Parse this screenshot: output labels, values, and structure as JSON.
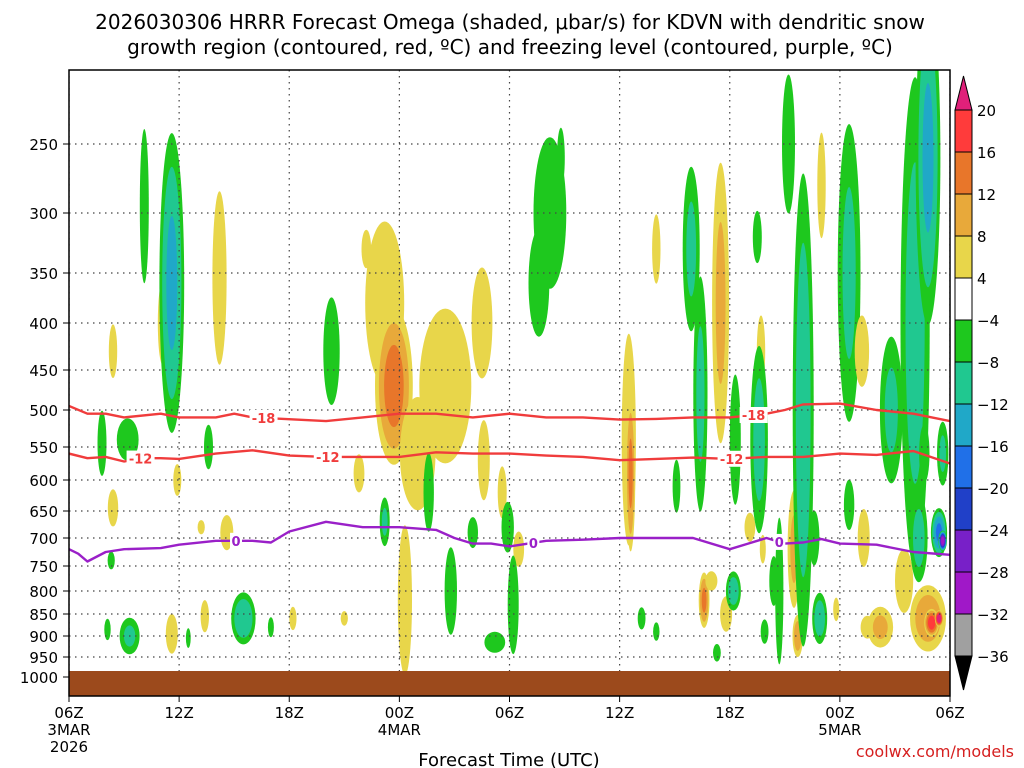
{
  "chart_data": {
    "type": "heatmap",
    "title_line1": "2026030306 HRRR Forecast Omega (shaded, μbar/s) for KDVN with dendritic snow",
    "title_line2": "growth region (contoured, red, ºC) and freezing level (contoured, purple, ºC)",
    "xlabel": "Forecast Time (UTC)",
    "ylabel": "",
    "credit": "coolwx.com/models",
    "x_range_hours": [
      0,
      48
    ],
    "y_range_hpa": [
      1050,
      200
    ],
    "x_ticks": [
      {
        "h": 0,
        "label": "06Z",
        "sub1": "3MAR",
        "sub2": "2026"
      },
      {
        "h": 6,
        "label": "12Z",
        "sub1": "",
        "sub2": ""
      },
      {
        "h": 12,
        "label": "18Z",
        "sub1": "",
        "sub2": ""
      },
      {
        "h": 18,
        "label": "00Z",
        "sub1": "4MAR",
        "sub2": ""
      },
      {
        "h": 24,
        "label": "06Z",
        "sub1": "",
        "sub2": ""
      },
      {
        "h": 30,
        "label": "12Z",
        "sub1": "",
        "sub2": ""
      },
      {
        "h": 36,
        "label": "18Z",
        "sub1": "",
        "sub2": ""
      },
      {
        "h": 42,
        "label": "00Z",
        "sub1": "5MAR",
        "sub2": ""
      },
      {
        "h": 48,
        "label": "06Z",
        "sub1": "",
        "sub2": ""
      }
    ],
    "y_ticks": [
      {
        "p": 250,
        "label": "250"
      },
      {
        "p": 300,
        "label": "300"
      },
      {
        "p": 350,
        "label": "350"
      },
      {
        "p": 400,
        "label": "400"
      },
      {
        "p": 450,
        "label": "450"
      },
      {
        "p": 500,
        "label": "500"
      },
      {
        "p": 550,
        "label": "550"
      },
      {
        "p": 600,
        "label": "600"
      },
      {
        "p": 650,
        "label": "650"
      },
      {
        "p": 700,
        "label": "700"
      },
      {
        "p": 750,
        "label": "750"
      },
      {
        "p": 800,
        "label": "800"
      },
      {
        "p": 850,
        "label": "850"
      },
      {
        "p": 900,
        "label": "900"
      },
      {
        "p": 950,
        "label": "950"
      },
      {
        "p": 1000,
        "label": "1000"
      }
    ],
    "colorbar": {
      "levels": [
        "20",
        "16",
        "12",
        "8",
        "4",
        "−4",
        "−8",
        "−12",
        "−16",
        "−20",
        "−24",
        "−28",
        "−32",
        "−36"
      ],
      "colors": [
        "#ff3b3b",
        "#e8762a",
        "#e8a93a",
        "#e8d64a",
        "#ffffff",
        "#1ec81e",
        "#20c890",
        "#20a8c8",
        "#2070e8",
        "#2040c8",
        "#7820c8",
        "#a018c8",
        "#a0a0a0"
      ],
      "top_arrow_color": "#e0207a",
      "bottom_arrow_color": "#000000"
    },
    "omega_blobs": [
      {
        "h": 1.8,
        "p": 545,
        "dh": 0.35,
        "dp": 65,
        "v": -6
      },
      {
        "h": 2.1,
        "p": 885,
        "dh": 0.25,
        "dp": 35,
        "v": -6
      },
      {
        "h": 2.3,
        "p": 740,
        "dh": 0.3,
        "dp": 25,
        "v": -5
      },
      {
        "h": 2.4,
        "p": 430,
        "dh": 0.35,
        "dp": 45,
        "v": 5
      },
      {
        "h": 2.4,
        "p": 645,
        "dh": 0.4,
        "dp": 45,
        "v": 6
      },
      {
        "h": 3.2,
        "p": 540,
        "dh": 0.8,
        "dp": 40,
        "v": -7
      },
      {
        "h": 3.3,
        "p": 900,
        "dh": 0.7,
        "dp": 55,
        "v": -8
      },
      {
        "h": 4.1,
        "p": 295,
        "dh": 0.35,
        "dp": 85,
        "v": -6
      },
      {
        "h": 5.1,
        "p": 400,
        "dh": 0.4,
        "dp": 65,
        "v": 5
      },
      {
        "h": 5.6,
        "p": 360,
        "dh": 0.8,
        "dp": 160,
        "v": -12
      },
      {
        "h": 5.6,
        "p": 895,
        "dh": 0.5,
        "dp": 70,
        "v": 5
      },
      {
        "h": 5.9,
        "p": 600,
        "dh": 0.35,
        "dp": 40,
        "v": 4.5
      },
      {
        "h": 6.5,
        "p": 905,
        "dh": 0.2,
        "dp": 35,
        "v": -5
      },
      {
        "h": 7.2,
        "p": 680,
        "dh": 0.3,
        "dp": 20,
        "v": 5
      },
      {
        "h": 7.4,
        "p": 855,
        "dh": 0.35,
        "dp": 55,
        "v": 5
      },
      {
        "h": 7.6,
        "p": 550,
        "dh": 0.35,
        "dp": 45,
        "v": -6
      },
      {
        "h": 8.2,
        "p": 355,
        "dh": 0.55,
        "dp": 110,
        "v": 6
      },
      {
        "h": 8.6,
        "p": 690,
        "dh": 0.5,
        "dp": 45,
        "v": 6
      },
      {
        "h": 9.5,
        "p": 860,
        "dh": 0.8,
        "dp": 70,
        "v": -11
      },
      {
        "h": 11.0,
        "p": 880,
        "dh": 0.25,
        "dp": 35,
        "v": -5
      },
      {
        "h": 12.2,
        "p": 860,
        "dh": 0.3,
        "dp": 40,
        "v": 5
      },
      {
        "h": 14.3,
        "p": 430,
        "dh": 0.6,
        "dp": 80,
        "v": -7
      },
      {
        "h": 15.0,
        "p": 860,
        "dh": 0.3,
        "dp": 25,
        "v": 5
      },
      {
        "h": 15.8,
        "p": 590,
        "dh": 0.45,
        "dp": 45,
        "v": 5
      },
      {
        "h": 16.2,
        "p": 330,
        "dh": 0.4,
        "dp": 25,
        "v": 5
      },
      {
        "h": 17.2,
        "p": 380,
        "dh": 1.5,
        "dp": 110,
        "v": 6
      },
      {
        "h": 17.7,
        "p": 470,
        "dh": 1.2,
        "dp": 110,
        "v": 13
      },
      {
        "h": 17.2,
        "p": 670,
        "dh": 0.35,
        "dp": 55,
        "v": -8
      },
      {
        "h": 18.3,
        "p": 820,
        "dh": 0.55,
        "dp": 220,
        "v": 6
      },
      {
        "h": 19.0,
        "p": 560,
        "dh": 1.3,
        "dp": 110,
        "v": 7
      },
      {
        "h": 19.6,
        "p": 620,
        "dh": 0.4,
        "dp": 90,
        "v": -6
      },
      {
        "h": 20.5,
        "p": 470,
        "dh": 2.0,
        "dp": 130,
        "v": 6
      },
      {
        "h": 20.8,
        "p": 800,
        "dh": 0.45,
        "dp": 120,
        "v": -7
      },
      {
        "h": 22.0,
        "p": 690,
        "dh": 0.4,
        "dp": 40,
        "v": -6
      },
      {
        "h": 22.5,
        "p": 400,
        "dh": 0.8,
        "dp": 80,
        "v": 6
      },
      {
        "h": 22.6,
        "p": 570,
        "dh": 0.5,
        "dp": 90,
        "v": 5
      },
      {
        "h": 23.6,
        "p": 620,
        "dh": 0.35,
        "dp": 60,
        "v": 6
      },
      {
        "h": 23.9,
        "p": 680,
        "dh": 0.45,
        "dp": 60,
        "v": -7
      },
      {
        "h": 24.5,
        "p": 720,
        "dh": 0.45,
        "dp": 50,
        "v": 5
      },
      {
        "h": 24.2,
        "p": 830,
        "dh": 0.4,
        "dp": 140,
        "v": -7
      },
      {
        "h": 23.2,
        "p": 915,
        "dh": 0.8,
        "dp": 35,
        "v": -6
      },
      {
        "h": 25.6,
        "p": 360,
        "dh": 0.8,
        "dp": 70,
        "v": -6
      },
      {
        "h": 26.2,
        "p": 300,
        "dh": 1.2,
        "dp": 80,
        "v": -7
      },
      {
        "h": 26.8,
        "p": 260,
        "dh": 0.3,
        "dp": 30,
        "v": -6
      },
      {
        "h": 30.5,
        "p": 540,
        "dh": 0.55,
        "dp": 200,
        "v": 6
      },
      {
        "h": 30.6,
        "p": 590,
        "dh": 0.3,
        "dp": 140,
        "v": 12
      },
      {
        "h": 31.2,
        "p": 860,
        "dh": 0.3,
        "dp": 35,
        "v": -6
      },
      {
        "h": 32.0,
        "p": 330,
        "dh": 0.35,
        "dp": 45,
        "v": 5
      },
      {
        "h": 32.0,
        "p": 890,
        "dh": 0.25,
        "dp": 30,
        "v": -6
      },
      {
        "h": 33.1,
        "p": 610,
        "dh": 0.3,
        "dp": 60,
        "v": -6
      },
      {
        "h": 33.9,
        "p": 330,
        "dh": 0.6,
        "dp": 90,
        "v": -8
      },
      {
        "h": 34.4,
        "p": 480,
        "dh": 0.5,
        "dp": 180,
        "v": -8
      },
      {
        "h": 34.6,
        "p": 820,
        "dh": 0.35,
        "dp": 70,
        "v": 12
      },
      {
        "h": 35.0,
        "p": 780,
        "dh": 0.5,
        "dp": 30,
        "v": 5
      },
      {
        "h": 35.3,
        "p": 940,
        "dh": 0.3,
        "dp": 30,
        "v": -6
      },
      {
        "h": 35.5,
        "p": 380,
        "dh": 0.6,
        "dp": 170,
        "v": 8
      },
      {
        "h": 35.8,
        "p": 850,
        "dh": 0.5,
        "dp": 60,
        "v": 5
      },
      {
        "h": 36.2,
        "p": 800,
        "dh": 0.5,
        "dp": 50,
        "v": -10
      },
      {
        "h": 36.3,
        "p": 540,
        "dh": 0.4,
        "dp": 120,
        "v": -7
      },
      {
        "h": 37.1,
        "p": 680,
        "dh": 0.45,
        "dp": 40,
        "v": 5
      },
      {
        "h": 37.5,
        "p": 320,
        "dh": 0.35,
        "dp": 30,
        "v": -6
      },
      {
        "h": 37.7,
        "p": 430,
        "dh": 0.35,
        "dp": 60,
        "v": 5
      },
      {
        "h": 37.6,
        "p": 540,
        "dh": 0.6,
        "dp": 160,
        "v": -9
      },
      {
        "h": 37.8,
        "p": 720,
        "dh": 0.25,
        "dp": 40,
        "v": 5
      },
      {
        "h": 37.9,
        "p": 890,
        "dh": 0.3,
        "dp": 40,
        "v": -6
      },
      {
        "h": 38.4,
        "p": 780,
        "dh": 0.35,
        "dp": 70,
        "v": -6
      },
      {
        "h": 38.7,
        "p": 800,
        "dh": 0.3,
        "dp": 200,
        "v": -7
      },
      {
        "h": 39.2,
        "p": 250,
        "dh": 0.5,
        "dp": 70,
        "v": -6
      },
      {
        "h": 39.5,
        "p": 720,
        "dh": 0.45,
        "dp": 140,
        "v": 8
      },
      {
        "h": 39.7,
        "p": 900,
        "dh": 0.35,
        "dp": 60,
        "v": 10
      },
      {
        "h": 40.0,
        "p": 500,
        "dh": 0.7,
        "dp": 330,
        "v": -10
      },
      {
        "h": 40.6,
        "p": 700,
        "dh": 0.4,
        "dp": 70,
        "v": -6
      },
      {
        "h": 40.9,
        "p": 860,
        "dh": 0.5,
        "dp": 70,
        "v": -10
      },
      {
        "h": 41.0,
        "p": 280,
        "dh": 0.35,
        "dp": 60,
        "v": 5
      },
      {
        "h": 41.8,
        "p": 840,
        "dh": 0.25,
        "dp": 40,
        "v": 5
      },
      {
        "h": 42.5,
        "p": 350,
        "dh": 0.8,
        "dp": 170,
        "v": -8
      },
      {
        "h": 42.5,
        "p": 640,
        "dh": 0.4,
        "dp": 60,
        "v": -6
      },
      {
        "h": 43.2,
        "p": 430,
        "dh": 0.6,
        "dp": 60,
        "v": 5
      },
      {
        "h": 43.3,
        "p": 700,
        "dh": 0.5,
        "dp": 80,
        "v": 5
      },
      {
        "h": 43.5,
        "p": 880,
        "dh": 0.5,
        "dp": 35,
        "v": 7
      },
      {
        "h": 44.2,
        "p": 880,
        "dh": 0.9,
        "dp": 60,
        "v": 8
      },
      {
        "h": 44.8,
        "p": 500,
        "dh": 0.8,
        "dp": 120,
        "v": -8
      },
      {
        "h": 45.5,
        "p": 780,
        "dh": 0.7,
        "dp": 90,
        "v": 6
      },
      {
        "h": 46.1,
        "p": 400,
        "dh": 1.0,
        "dp": 300,
        "v": -9
      },
      {
        "h": 46.3,
        "p": 700,
        "dh": 0.6,
        "dp": 100,
        "v": -9
      },
      {
        "h": 46.6,
        "p": 560,
        "dh": 0.4,
        "dp": 60,
        "v": -6
      },
      {
        "h": 46.8,
        "p": 260,
        "dh": 0.8,
        "dp": 150,
        "v": -12
      },
      {
        "h": 46.8,
        "p": 860,
        "dh": 1.2,
        "dp": 90,
        "v": 10
      },
      {
        "h": 47.0,
        "p": 870,
        "dh": 0.45,
        "dp": 35,
        "v": 18
      },
      {
        "h": 47.4,
        "p": 860,
        "dh": 0.25,
        "dp": 20,
        "v": 24
      },
      {
        "h": 47.4,
        "p": 690,
        "dh": 0.5,
        "dp": 50,
        "v": -16
      },
      {
        "h": 47.6,
        "p": 705,
        "dh": 0.25,
        "dp": 20,
        "v": -30
      },
      {
        "h": 47.6,
        "p": 560,
        "dh": 0.4,
        "dp": 60,
        "v": -8
      }
    ],
    "dgz_minus18": {
      "points": [
        [
          0,
          495
        ],
        [
          1,
          505
        ],
        [
          2,
          505
        ],
        [
          3,
          510
        ],
        [
          5,
          505
        ],
        [
          6,
          510
        ],
        [
          8,
          510
        ],
        [
          9,
          505
        ],
        [
          10,
          510
        ],
        [
          14,
          515
        ],
        [
          16,
          510
        ],
        [
          18,
          505
        ],
        [
          20,
          505
        ],
        [
          22,
          510
        ],
        [
          24,
          505
        ],
        [
          26,
          510
        ],
        [
          28,
          510
        ],
        [
          30,
          513
        ],
        [
          32,
          512
        ],
        [
          34,
          510
        ],
        [
          36,
          510
        ],
        [
          38,
          505
        ],
        [
          39,
          500
        ],
        [
          40,
          493
        ],
        [
          42,
          492
        ],
        [
          44,
          500
        ],
        [
          46,
          505
        ],
        [
          48,
          515
        ]
      ],
      "labels": [
        {
          "h": 10.6,
          "text": "-18"
        },
        {
          "h": 37.3,
          "text": "-18"
        }
      ]
    },
    "dgz_minus12": {
      "points": [
        [
          0,
          560
        ],
        [
          1,
          567
        ],
        [
          2,
          565
        ],
        [
          3,
          572
        ],
        [
          4,
          567
        ],
        [
          5,
          567
        ],
        [
          6,
          568
        ],
        [
          8,
          560
        ],
        [
          10,
          555
        ],
        [
          12,
          563
        ],
        [
          14,
          565
        ],
        [
          16,
          565
        ],
        [
          18,
          565
        ],
        [
          20,
          558
        ],
        [
          22,
          560
        ],
        [
          24,
          560
        ],
        [
          26,
          563
        ],
        [
          28,
          565
        ],
        [
          30,
          570
        ],
        [
          32,
          568
        ],
        [
          34,
          566
        ],
        [
          36,
          568
        ],
        [
          38,
          565
        ],
        [
          40,
          565
        ],
        [
          42,
          560
        ],
        [
          44,
          562
        ],
        [
          46,
          556
        ],
        [
          48,
          575
        ]
      ],
      "labels": [
        {
          "h": 3.9,
          "text": "-12"
        },
        {
          "h": 14.1,
          "text": "-12"
        },
        {
          "h": 36.1,
          "text": "-12"
        }
      ]
    },
    "freezing_0": {
      "points": [
        [
          0,
          720
        ],
        [
          0.5,
          728
        ],
        [
          1,
          742
        ],
        [
          2,
          725
        ],
        [
          3,
          720
        ],
        [
          5,
          718
        ],
        [
          6,
          712
        ],
        [
          8,
          705
        ],
        [
          10,
          705
        ],
        [
          11,
          708
        ],
        [
          12,
          688
        ],
        [
          14,
          670
        ],
        [
          16,
          680
        ],
        [
          18,
          680
        ],
        [
          20,
          685
        ],
        [
          21,
          700
        ],
        [
          22,
          710
        ],
        [
          23,
          710
        ],
        [
          24,
          715
        ],
        [
          26,
          705
        ],
        [
          28,
          703
        ],
        [
          30,
          700
        ],
        [
          32,
          700
        ],
        [
          34,
          700
        ],
        [
          36,
          720
        ],
        [
          37,
          710
        ],
        [
          38,
          700
        ],
        [
          39,
          710
        ],
        [
          40,
          708
        ],
        [
          41,
          702
        ],
        [
          42,
          710
        ],
        [
          44,
          712
        ],
        [
          46,
          725
        ],
        [
          48,
          730
        ]
      ],
      "labels": [
        {
          "h": 9.1,
          "text": "0"
        },
        {
          "h": 25.3,
          "text": "0"
        },
        {
          "h": 38.7,
          "text": "0"
        }
      ]
    },
    "terrain_top_hpa": 985,
    "terrain_color": "#9c4a1c"
  }
}
